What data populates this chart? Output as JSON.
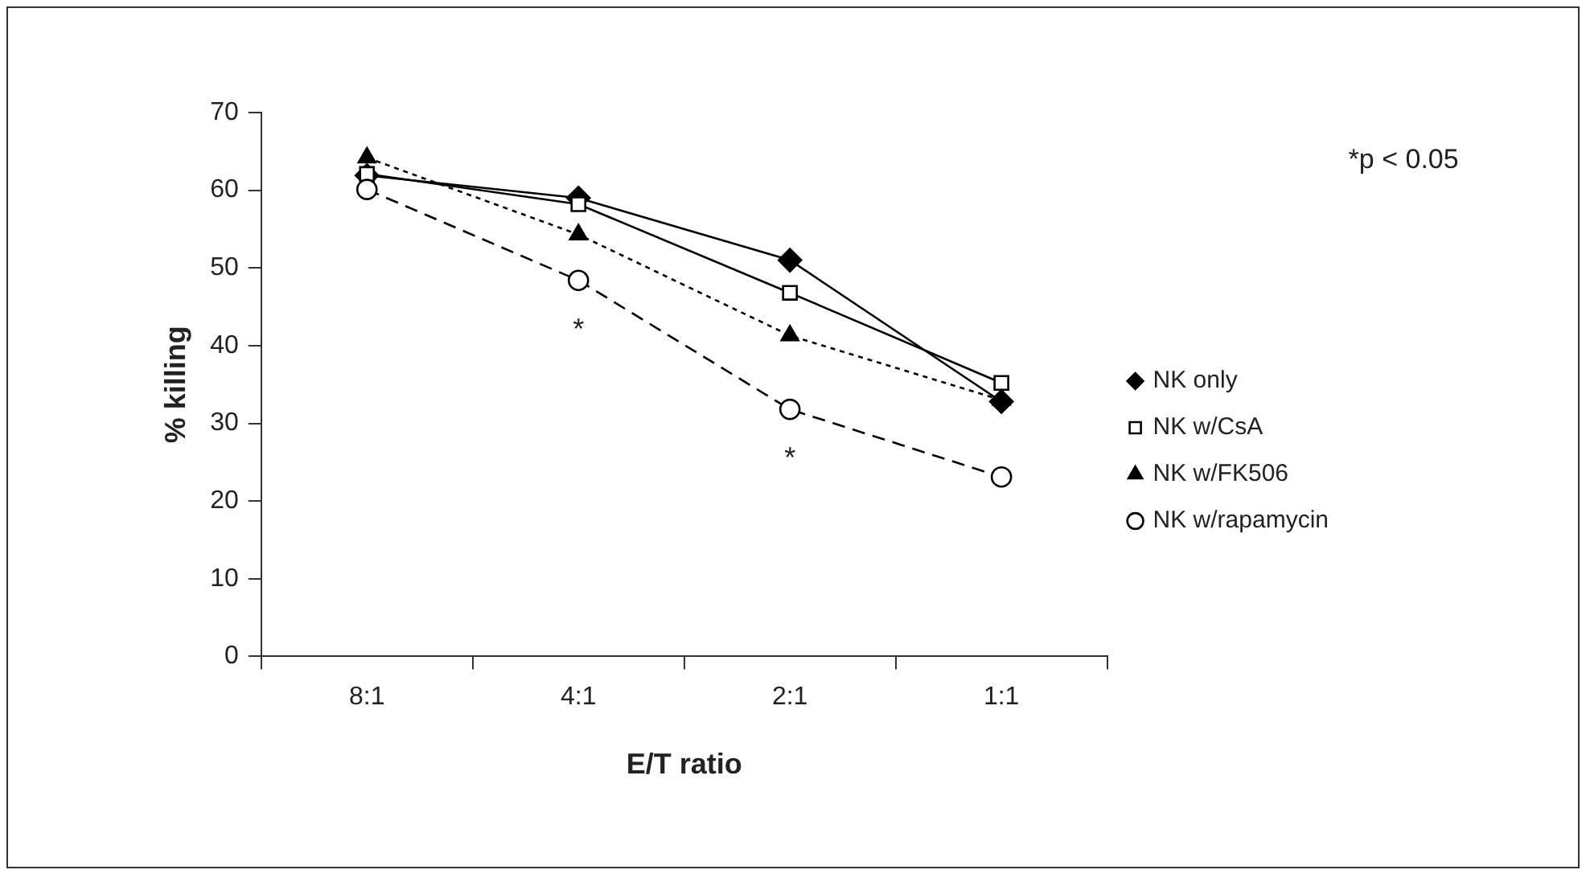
{
  "chart_data": {
    "type": "line",
    "xlabel": "E/T ratio",
    "ylabel": "% killing",
    "categories": [
      "8:1",
      "4:1",
      "2:1",
      "1:1"
    ],
    "series": [
      {
        "name": "NK only",
        "color": "#000000",
        "values": [
          61.9,
          59,
          51,
          32.8
        ],
        "marker": "diamond",
        "line_style": "solid"
      },
      {
        "name": "NK w/CsA",
        "color": "#000000",
        "values": [
          62.1,
          58.2,
          46.8,
          35.2
        ],
        "marker": "square",
        "line_style": "solid"
      },
      {
        "name": "NK w/FK506",
        "color": "#000000",
        "values": [
          64.2,
          54.3,
          41.3,
          33
        ],
        "marker": "triangle",
        "line_style": "dotted"
      },
      {
        "name": "NK w/rapamycin",
        "color": "#000000",
        "values": [
          60.1,
          48.4,
          31.8,
          23.1
        ],
        "marker": "circle",
        "line_style": "dashed",
        "value_labels": [
          null,
          "*",
          "*",
          null
        ]
      }
    ],
    "ylim": [
      0,
      70
    ],
    "yticks": [
      0,
      10,
      20,
      30,
      40,
      50,
      60,
      70
    ],
    "grid": false,
    "legend": "right",
    "annotations": [
      "*p < 0.05"
    ]
  }
}
